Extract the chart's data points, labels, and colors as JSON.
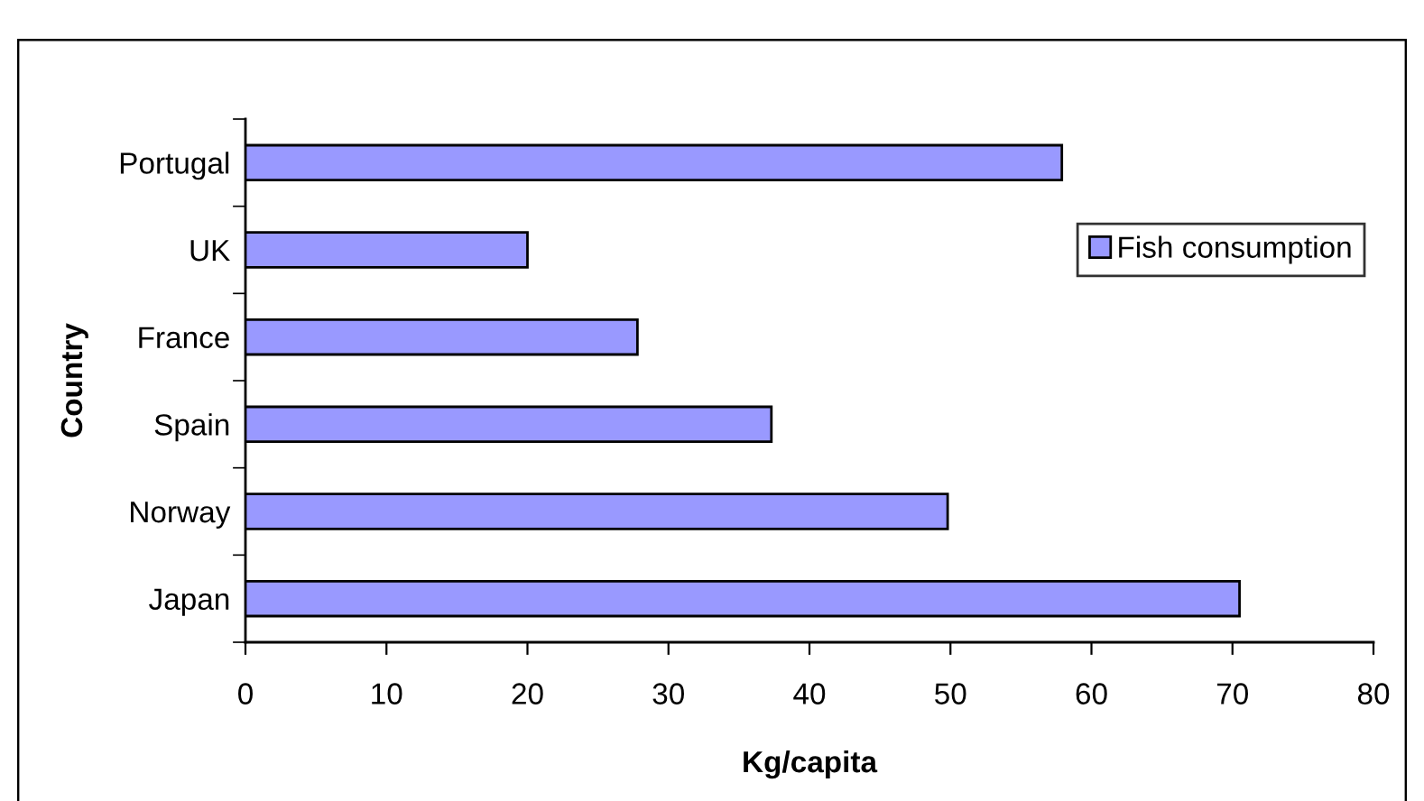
{
  "chart_data": {
    "type": "bar",
    "orientation": "horizontal",
    "categories": [
      "Portugal",
      "UK",
      "France",
      "Spain",
      "Norway",
      "Japan"
    ],
    "series": [
      {
        "name": "Fish consumption",
        "color": "#9999ff",
        "values": [
          57.9,
          20,
          27.8,
          37.3,
          49.8,
          70.5
        ]
      }
    ],
    "xlabel": "Kg/capita",
    "ylabel": "Country",
    "xlim": [
      0,
      80
    ],
    "xticks": [
      0,
      10,
      20,
      30,
      40,
      50,
      60,
      70,
      80
    ],
    "legend": "right",
    "grid": false
  }
}
